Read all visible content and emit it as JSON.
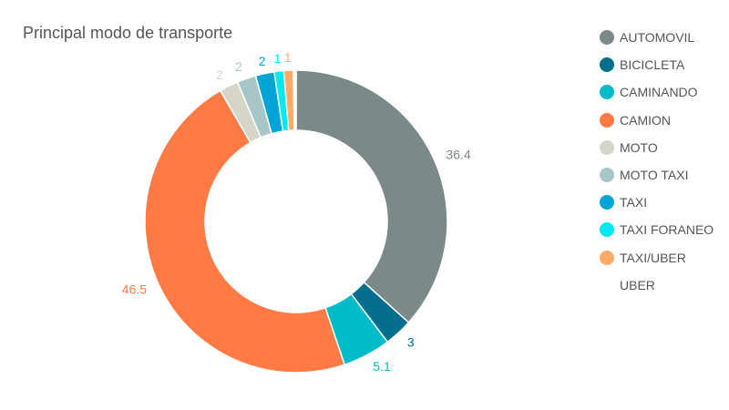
{
  "chart_data": {
    "type": "pie",
    "donut": true,
    "title": "Principal modo de transporte",
    "legend_position": "right",
    "categories": [
      "AUTOMOVIL",
      "BICICLETA",
      "CAMINANDO",
      "CAMION",
      "MOTO",
      "MOTO TAXI",
      "TAXI",
      "TAXI FORANEO",
      "TAXI/UBER",
      "UBER"
    ],
    "values": [
      36.4,
      3,
      5.1,
      46.5,
      2,
      2,
      2,
      1,
      1,
      0.3
    ],
    "data_labels": [
      "36.4",
      "3",
      "5.1",
      "46.5",
      "2",
      "2",
      "2",
      "1",
      "1",
      ""
    ],
    "colors": [
      "#7a8a88",
      "#006e8c",
      "#00bcc8",
      "#ff7a45",
      "#d6d6c8",
      "#a8c6c8",
      "#00a5d6",
      "#00e8f0",
      "#ffaa66",
      "#ffffff"
    ]
  }
}
